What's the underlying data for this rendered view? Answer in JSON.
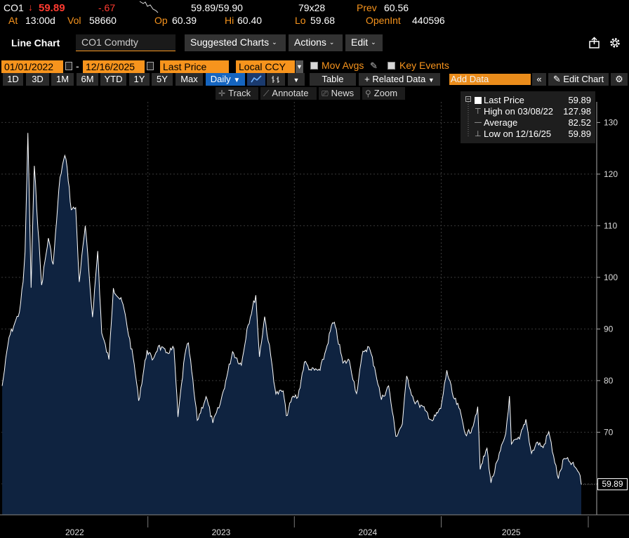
{
  "quote": {
    "ticker": "CO1",
    "arrow": "↓",
    "last": "59.89",
    "change": "-.67",
    "bid_ask": "59.89/59.90",
    "size": "79x28",
    "prev_label": "Prev",
    "prev": "60.56",
    "at_label": "At",
    "time": "13:00d",
    "vol_label": "Vol",
    "vol": "58660",
    "op_label": "Op",
    "op": "60.39",
    "hi_label": "Hi",
    "hi": "60.40",
    "lo_label": "Lo",
    "lo": "59.68",
    "oi_label": "OpenInt",
    "oi": "440596"
  },
  "titlebar": {
    "title": "Line Chart",
    "security": "CO1 Comdty",
    "suggested": "Suggested Charts",
    "actions": "Actions",
    "edit": "Edit"
  },
  "controls": {
    "start_date": "01/01/2022",
    "dash": "-",
    "end_date": "12/16/2025",
    "field": "Last Price",
    "currency": "Local CCY",
    "mov_avgs": "Mov Avgs",
    "key_events": "Key Events"
  },
  "periods": [
    "1D",
    "3D",
    "1M",
    "6M",
    "YTD",
    "1Y",
    "5Y",
    "Max"
  ],
  "frequency": "Daily",
  "row2": {
    "table": "Table",
    "related": "+ Related Data",
    "add_data_placeholder": "Add Data",
    "edit_chart": "Edit Chart"
  },
  "tools": [
    "Track",
    "Annotate",
    "News",
    "Zoom"
  ],
  "legend": [
    {
      "label": "Last Price",
      "value": "59.89"
    },
    {
      "label": "High on 03/08/22",
      "value": "127.98"
    },
    {
      "label": "Average",
      "value": "82.52"
    },
    {
      "label": "Low on 12/16/25",
      "value": "59.89"
    }
  ],
  "last_tag": "59.89",
  "colors": {
    "accent": "#f7941d",
    "area_fill": "#0f2340",
    "line": "#ffffff",
    "down": "#ff3b30",
    "active": "#1565c0"
  },
  "chart_data": {
    "type": "area",
    "title": "",
    "xlabel": "",
    "ylabel": "",
    "ylim": [
      54,
      134
    ],
    "y_ticks": [
      60,
      70,
      80,
      90,
      100,
      110,
      120,
      130
    ],
    "y_tick_labels": [
      "",
      "70",
      "80",
      "90",
      "100",
      "110",
      "120",
      "130"
    ],
    "x_labels": [
      "2022",
      "2023",
      "2024",
      "2025"
    ],
    "x_range": [
      "2022-01-01",
      "2025-12-16"
    ],
    "grid": true,
    "legend_position": "top-right",
    "series": [
      {
        "name": "Last Price",
        "points": [
          [
            "2022-01-03",
            78.98
          ],
          [
            "2022-01-20",
            88.4
          ],
          [
            "2022-02-03",
            91.1
          ],
          [
            "2022-02-15",
            93.3
          ],
          [
            "2022-02-24",
            99.1
          ],
          [
            "2022-03-01",
            104.97
          ],
          [
            "2022-03-08",
            127.98
          ],
          [
            "2022-03-16",
            98.0
          ],
          [
            "2022-03-24",
            121.6
          ],
          [
            "2022-04-11",
            98.5
          ],
          [
            "2022-04-28",
            107.6
          ],
          [
            "2022-05-10",
            102.5
          ],
          [
            "2022-05-27",
            119.4
          ],
          [
            "2022-06-08",
            123.6
          ],
          [
            "2022-06-14",
            121.2
          ],
          [
            "2022-06-24",
            113.1
          ],
          [
            "2022-07-05",
            113.5
          ],
          [
            "2022-07-14",
            99.1
          ],
          [
            "2022-07-29",
            110.0
          ],
          [
            "2022-08-16",
            92.3
          ],
          [
            "2022-08-29",
            105.1
          ],
          [
            "2022-09-08",
            89.2
          ],
          [
            "2022-09-26",
            84.1
          ],
          [
            "2022-10-07",
            97.9
          ],
          [
            "2022-10-31",
            94.8
          ],
          [
            "2022-11-28",
            83.2
          ],
          [
            "2022-12-09",
            76.1
          ],
          [
            "2022-12-30",
            85.9
          ],
          [
            "2023-01-12",
            84.0
          ],
          [
            "2023-01-27",
            86.7
          ],
          [
            "2023-02-15",
            85.4
          ],
          [
            "2023-03-07",
            86.2
          ],
          [
            "2023-03-17",
            72.97
          ],
          [
            "2023-04-03",
            84.9
          ],
          [
            "2023-04-12",
            87.3
          ],
          [
            "2023-05-04",
            72.3
          ],
          [
            "2023-05-26",
            76.9
          ],
          [
            "2023-06-12",
            71.8
          ],
          [
            "2023-06-30",
            75.4
          ],
          [
            "2023-07-14",
            79.9
          ],
          [
            "2023-07-31",
            85.6
          ],
          [
            "2023-08-22",
            83.0
          ],
          [
            "2023-09-05",
            90.0
          ],
          [
            "2023-09-27",
            96.55
          ],
          [
            "2023-10-06",
            84.6
          ],
          [
            "2023-10-19",
            92.4
          ],
          [
            "2023-11-03",
            84.9
          ],
          [
            "2023-11-16",
            77.4
          ],
          [
            "2023-12-04",
            78.0
          ],
          [
            "2023-12-12",
            73.2
          ],
          [
            "2023-12-29",
            77.0
          ],
          [
            "2024-01-10",
            76.8
          ],
          [
            "2024-01-26",
            83.6
          ],
          [
            "2024-02-12",
            82.0
          ],
          [
            "2024-03-05",
            82.0
          ],
          [
            "2024-03-20",
            86.0
          ],
          [
            "2024-04-05",
            91.2
          ],
          [
            "2024-04-12",
            90.5
          ],
          [
            "2024-05-01",
            83.4
          ],
          [
            "2024-05-17",
            83.9
          ],
          [
            "2024-06-04",
            77.5
          ],
          [
            "2024-06-20",
            85.7
          ],
          [
            "2024-07-05",
            86.5
          ],
          [
            "2024-07-19",
            82.6
          ],
          [
            "2024-08-05",
            76.3
          ],
          [
            "2024-08-23",
            79.0
          ],
          [
            "2024-09-10",
            69.2
          ],
          [
            "2024-09-26",
            71.6
          ],
          [
            "2024-10-07",
            80.9
          ],
          [
            "2024-10-25",
            76.1
          ],
          [
            "2024-11-06",
            75.5
          ],
          [
            "2024-11-22",
            74.2
          ],
          [
            "2024-12-10",
            72.2
          ],
          [
            "2024-12-31",
            74.6
          ],
          [
            "2025-01-15",
            82.0
          ],
          [
            "2025-01-31",
            76.8
          ],
          [
            "2025-02-14",
            74.7
          ],
          [
            "2025-03-05",
            69.3
          ],
          [
            "2025-03-19",
            70.8
          ],
          [
            "2025-04-02",
            74.95
          ],
          [
            "2025-04-08",
            62.8
          ],
          [
            "2025-04-25",
            66.9
          ],
          [
            "2025-05-05",
            60.2
          ],
          [
            "2025-05-23",
            64.8
          ],
          [
            "2025-06-11",
            69.8
          ],
          [
            "2025-06-20",
            77.0
          ],
          [
            "2025-06-25",
            67.7
          ],
          [
            "2025-07-15",
            68.7
          ],
          [
            "2025-07-31",
            72.5
          ],
          [
            "2025-08-14",
            65.9
          ],
          [
            "2025-08-29",
            68.1
          ],
          [
            "2025-09-12",
            67.0
          ],
          [
            "2025-09-26",
            70.1
          ],
          [
            "2025-10-08",
            65.4
          ],
          [
            "2025-10-20",
            61.0
          ],
          [
            "2025-11-03",
            64.9
          ],
          [
            "2025-11-18",
            64.2
          ],
          [
            "2025-12-01",
            63.2
          ],
          [
            "2025-12-10",
            62.2
          ],
          [
            "2025-12-16",
            59.89
          ]
        ]
      }
    ]
  }
}
